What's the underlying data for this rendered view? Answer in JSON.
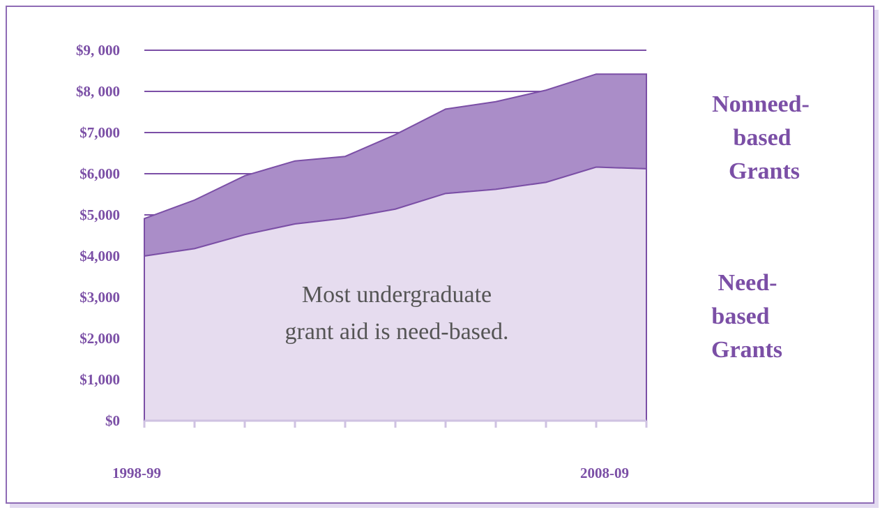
{
  "colors": {
    "frame": "#8e6bb5",
    "need_fill": "#e6dcef",
    "nonneed_fill": "#aa8dc8",
    "edge": "#7b4fa6",
    "text": "#7b4fa6",
    "annotation": "#555555"
  },
  "chart_data": {
    "type": "area",
    "stacked": true,
    "x_start_label": "1998-99",
    "x_end_label": "2008-09",
    "n_points": 11,
    "series": [
      {
        "name": "Need-based Grants",
        "label_lines": [
          "Need-",
          "based",
          "Grants"
        ],
        "values": [
          4000,
          4180,
          4520,
          4780,
          4920,
          5140,
          5520,
          5620,
          5790,
          6160,
          6120
        ]
      },
      {
        "name": "Nonneed-based Grants",
        "label_lines": [
          "Nonneed-",
          "based",
          "Grants"
        ],
        "values": [
          910,
          1180,
          1430,
          1530,
          1500,
          1810,
          2050,
          2130,
          2240,
          2260,
          2300
        ]
      }
    ],
    "ylim": [
      0,
      9000
    ],
    "yticks": [
      {
        "value": 0,
        "label": "$0"
      },
      {
        "value": 1000,
        "label": "$1,000"
      },
      {
        "value": 2000,
        "label": "$2,000"
      },
      {
        "value": 3000,
        "label": "$3,000"
      },
      {
        "value": 4000,
        "label": "$4,000"
      },
      {
        "value": 5000,
        "label": "$5,000"
      },
      {
        "value": 6000,
        "label": "$6,000"
      },
      {
        "value": 7000,
        "label": "$7,000"
      },
      {
        "value": 8000,
        "label": "$8, 000"
      },
      {
        "value": 9000,
        "label": "$9, 000"
      }
    ],
    "grid": true,
    "annotation_lines": [
      "Most undergraduate",
      "grant aid is need-based."
    ]
  }
}
